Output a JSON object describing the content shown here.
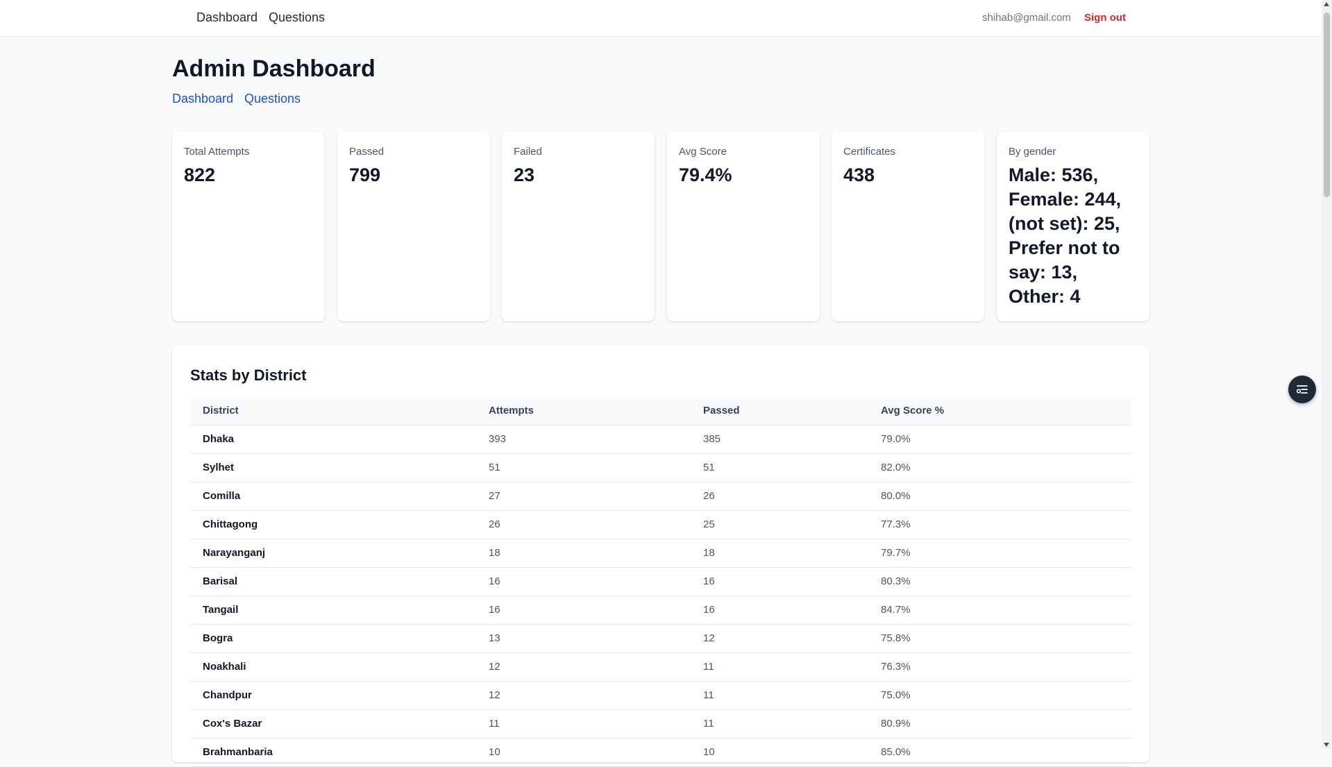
{
  "topnav": {
    "links": [
      "Dashboard",
      "Questions"
    ],
    "email": "shihab@gmail.com",
    "signout": "Sign out"
  },
  "page": {
    "title": "Admin Dashboard",
    "links": [
      "Dashboard",
      "Questions"
    ]
  },
  "stats": [
    {
      "label": "Total Attempts",
      "value": "822"
    },
    {
      "label": "Passed",
      "value": "799"
    },
    {
      "label": "Failed",
      "value": "23"
    },
    {
      "label": "Avg Score",
      "value": "79.4%"
    },
    {
      "label": "Certificates",
      "value": "438"
    },
    {
      "label": "By gender",
      "value": "Male: 536, Female: 244, (not set): 25, Prefer not to say: 13, Other: 4"
    }
  ],
  "district_table": {
    "title": "Stats by District",
    "columns": [
      "District",
      "Attempts",
      "Passed",
      "Avg Score %"
    ],
    "rows": [
      [
        "Dhaka",
        "393",
        "385",
        "79.0%"
      ],
      [
        "Sylhet",
        "51",
        "51",
        "82.0%"
      ],
      [
        "Comilla",
        "27",
        "26",
        "80.0%"
      ],
      [
        "Chittagong",
        "26",
        "25",
        "77.3%"
      ],
      [
        "Narayanganj",
        "18",
        "18",
        "79.7%"
      ],
      [
        "Barisal",
        "16",
        "16",
        "80.3%"
      ],
      [
        "Tangail",
        "16",
        "16",
        "84.7%"
      ],
      [
        "Bogra",
        "13",
        "12",
        "75.8%"
      ],
      [
        "Noakhali",
        "12",
        "11",
        "76.3%"
      ],
      [
        "Chandpur",
        "12",
        "11",
        "75.0%"
      ],
      [
        "Cox's Bazar",
        "11",
        "11",
        "80.9%"
      ],
      [
        "Brahmanbaria",
        "10",
        "10",
        "85.0%"
      ]
    ]
  },
  "colors": {
    "link_blue": "#1d4ed8",
    "signout_red": "#dc2626",
    "page_bg": "#f9fafb",
    "fab_bg": "#1f2937"
  },
  "icons": {
    "fab": "list-filter-icon"
  }
}
